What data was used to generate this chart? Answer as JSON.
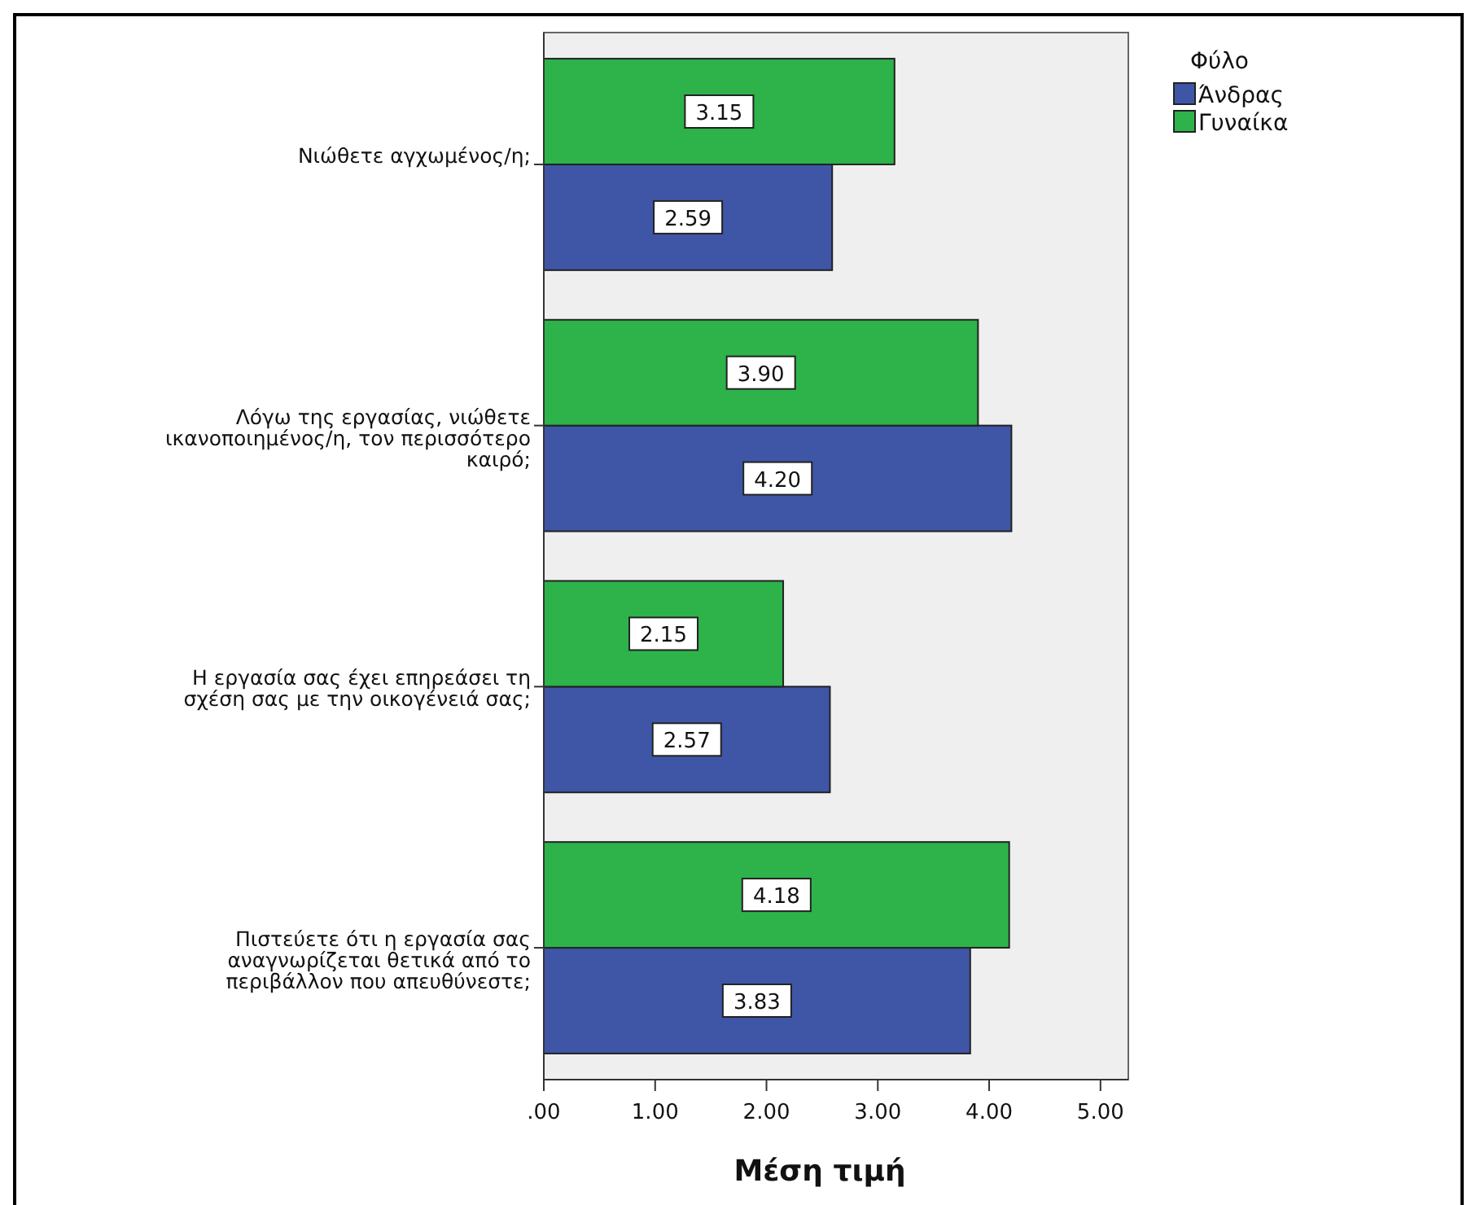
{
  "chart_data": {
    "type": "bar",
    "orientation": "horizontal",
    "xlabel": "Μέση τιμή",
    "legend_title": "Φύλο",
    "legend": "top right",
    "categories": [
      "Νιώθετε αγχωμένος/η;",
      "Λόγω της εργασίας, νιώθετε ικανοποιημένος/η, τον περισσότερο καιρό;",
      "Η εργασία σας έχει επηρεάσει τη σχέση σας με την οικογένειά σας;",
      "Πιστεύετε ότι η εργασία σας αναγνωρίζεται θετικά από το περιβάλλον που απευθύνεστε;"
    ],
    "series": [
      {
        "name": "Άνδρας",
        "color": "#3f56a6",
        "values": [
          2.59,
          4.2,
          2.57,
          3.83
        ],
        "value_labels": [
          "2.59",
          "4.20",
          "2.57",
          "3.83"
        ]
      },
      {
        "name": "Γυναίκα",
        "color": "#2db34a",
        "values": [
          3.15,
          3.9,
          2.15,
          4.18
        ],
        "value_labels": [
          "3.15",
          "3.90",
          "2.15",
          "4.18"
        ]
      }
    ],
    "xlim": [
      0,
      5.25
    ],
    "xticks": [
      {
        "value": 0,
        "label": ".00"
      },
      {
        "value": 1,
        "label": "1.00"
      },
      {
        "value": 2,
        "label": "2.00"
      },
      {
        "value": 3,
        "label": "3.00"
      },
      {
        "value": 4,
        "label": "4.00"
      },
      {
        "value": 5,
        "label": "5.00"
      }
    ],
    "grid": false
  }
}
